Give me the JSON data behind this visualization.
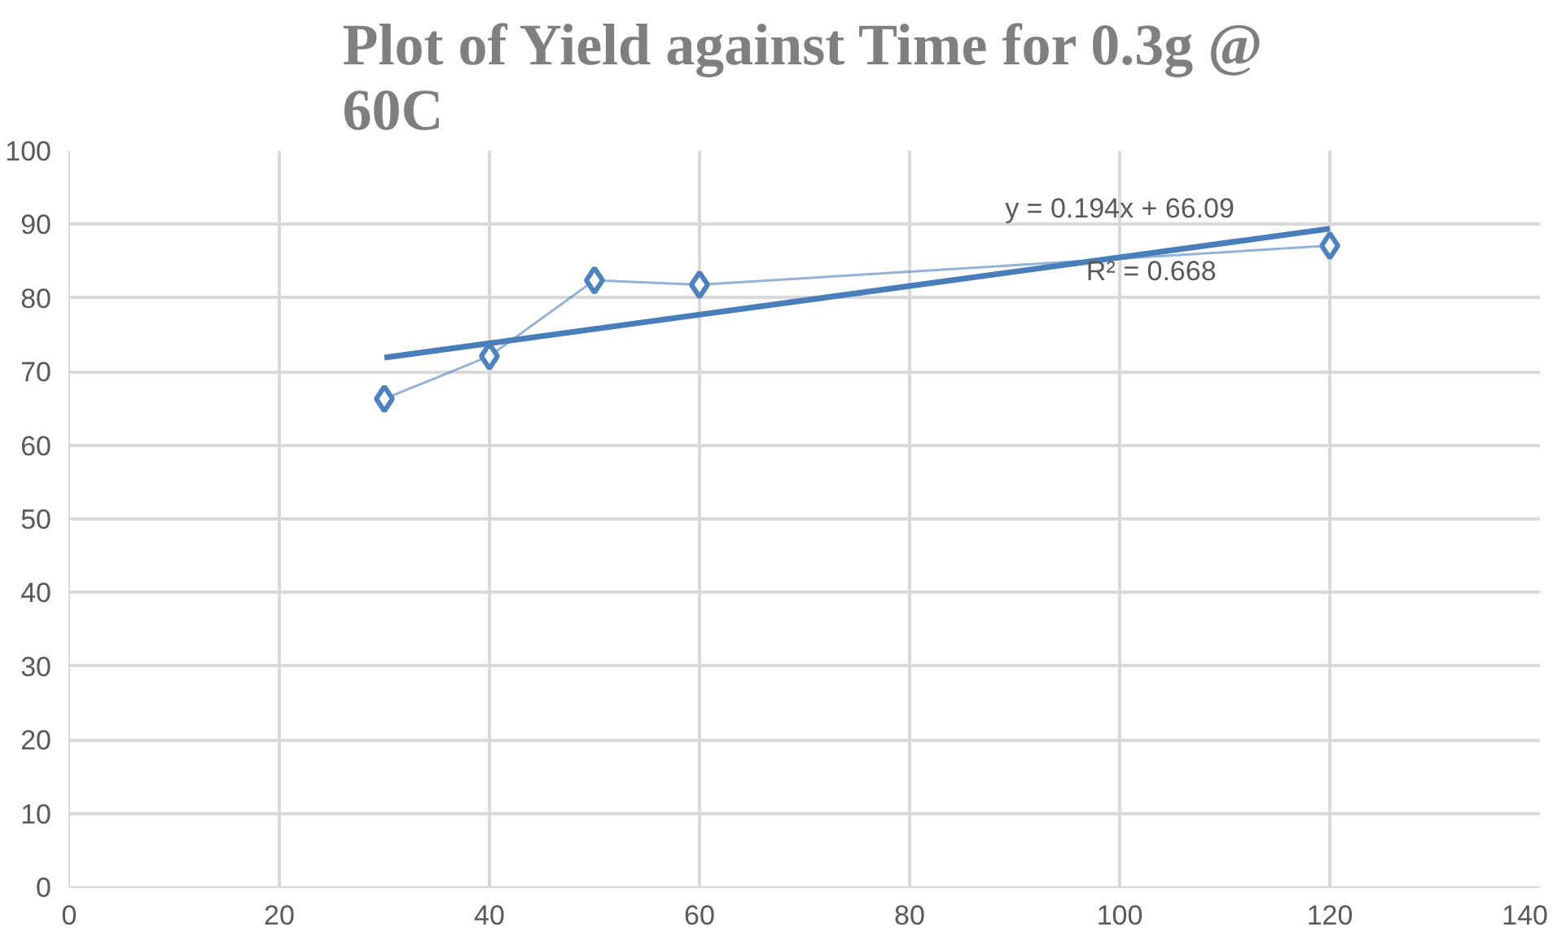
{
  "chart_data": {
    "type": "line",
    "title": "Plot of Yield against Time for 0.3g @ 60C",
    "xlim": [
      0,
      140
    ],
    "xticks": [
      0,
      20,
      40,
      60,
      80,
      100,
      120,
      140
    ],
    "ylim": [
      0,
      100
    ],
    "yticks": [
      0,
      10,
      20,
      30,
      40,
      50,
      60,
      70,
      80,
      90,
      100
    ],
    "grid": true,
    "series": [
      {
        "marker": "diamond",
        "color": "#4f81bd",
        "x": [
          30,
          40,
          50,
          60,
          120
        ],
        "values": [
          66.3,
          72.1,
          82.4,
          81.8,
          87.1
        ]
      },
      {
        "marker": "none",
        "color": "#4a7ebb",
        "x": [
          30,
          120
        ],
        "values": [
          71.9,
          89.4
        ]
      }
    ],
    "annotations": [
      "y = 0.194x + 66.09",
      "R² = 0.668"
    ]
  }
}
